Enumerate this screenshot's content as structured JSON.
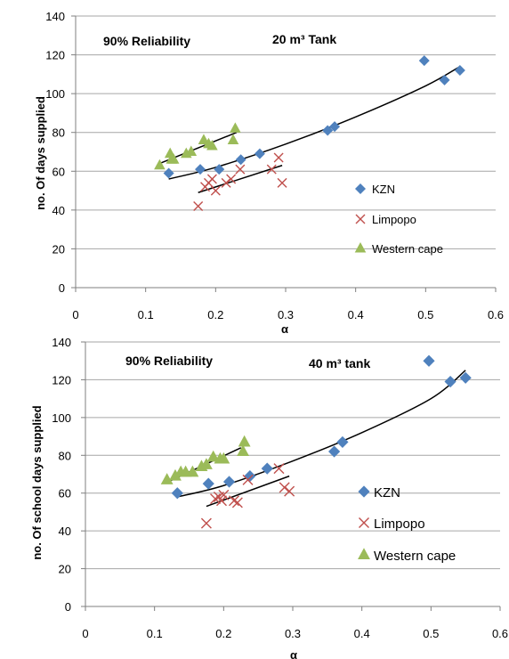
{
  "colors": {
    "kzn": "#4F81BD",
    "limpopo": "#C0504D",
    "western_cape": "#9BBB59",
    "trend": "#000000",
    "grid": "#A6A6A6"
  },
  "chart_data": [
    {
      "type": "scatter",
      "annotation_left": "90% Reliability",
      "annotation_right": "20 m³ Tank",
      "xlabel": "α",
      "ylabel": "no. Of days supplied",
      "xlim": [
        0,
        0.6
      ],
      "ylim": [
        0,
        140
      ],
      "x_ticks": [
        "0",
        "0.1",
        "0.2",
        "0.3",
        "0.4",
        "0.5",
        "0.6"
      ],
      "y_ticks": [
        "0",
        "20",
        "40",
        "60",
        "80",
        "100",
        "120",
        "140"
      ],
      "grid": "horizontal",
      "legend_position": "right",
      "series": [
        {
          "name": "KZN",
          "marker": "diamond",
          "color": "#4F81BD",
          "points": [
            [
              0.133,
              59
            ],
            [
              0.178,
              61
            ],
            [
              0.205,
              61
            ],
            [
              0.236,
              66
            ],
            [
              0.263,
              69
            ],
            [
              0.36,
              81
            ],
            [
              0.37,
              83
            ],
            [
              0.498,
              117
            ],
            [
              0.527,
              107
            ],
            [
              0.549,
              112
            ]
          ],
          "trendline": {
            "kind": "curve",
            "x_range": [
              0.133,
              0.549
            ],
            "points": [
              [
                0.133,
                56
              ],
              [
                0.2,
                62
              ],
              [
                0.3,
                74
              ],
              [
                0.4,
                88
              ],
              [
                0.5,
                104
              ],
              [
                0.549,
                114
              ]
            ]
          }
        },
        {
          "name": "Limpopo",
          "marker": "x",
          "color": "#C0504D",
          "points": [
            [
              0.175,
              42
            ],
            [
              0.185,
              52
            ],
            [
              0.19,
              54
            ],
            [
              0.195,
              56
            ],
            [
              0.2,
              50
            ],
            [
              0.215,
              54
            ],
            [
              0.222,
              56
            ],
            [
              0.235,
              61
            ],
            [
              0.28,
              61
            ],
            [
              0.29,
              67
            ],
            [
              0.295,
              54
            ]
          ],
          "trendline": {
            "kind": "line",
            "x_range": [
              0.175,
              0.295
            ],
            "y_range": [
              49,
              63
            ]
          }
        },
        {
          "name": "Western cape",
          "marker": "triangle",
          "color": "#9BBB59",
          "points": [
            [
              0.12,
              63
            ],
            [
              0.135,
              69
            ],
            [
              0.137,
              66
            ],
            [
              0.14,
              66
            ],
            [
              0.158,
              69
            ],
            [
              0.165,
              70
            ],
            [
              0.183,
              76
            ],
            [
              0.19,
              74
            ],
            [
              0.195,
              73
            ],
            [
              0.225,
              76
            ],
            [
              0.228,
              82
            ]
          ],
          "trendline": {
            "kind": "line",
            "x_range": [
              0.12,
              0.23
            ],
            "y_range": [
              64,
              80
            ]
          }
        }
      ]
    },
    {
      "type": "scatter",
      "annotation_left": "90% Reliability",
      "annotation_right": "40 m³ tank",
      "xlabel": "α",
      "ylabel": "no. Of school days supplied",
      "xlim": [
        0,
        0.6
      ],
      "ylim": [
        0,
        140
      ],
      "x_ticks": [
        "0",
        "0.1",
        "0.2",
        "0.3",
        "0.4",
        "0.5",
        "0.6"
      ],
      "y_ticks": [
        "0",
        "20",
        "40",
        "60",
        "80",
        "100",
        "120",
        "140"
      ],
      "grid": "horizontal",
      "legend_position": "right",
      "series": [
        {
          "name": "KZN",
          "marker": "diamond",
          "color": "#4F81BD",
          "points": [
            [
              0.133,
              60
            ],
            [
              0.178,
              65
            ],
            [
              0.208,
              66
            ],
            [
              0.238,
              69
            ],
            [
              0.263,
              73
            ],
            [
              0.36,
              82
            ],
            [
              0.372,
              87
            ],
            [
              0.497,
              130
            ],
            [
              0.528,
              119
            ],
            [
              0.55,
              121
            ]
          ],
          "trendline": {
            "kind": "curve",
            "x_range": [
              0.133,
              0.55
            ],
            "points": [
              [
                0.133,
                58
              ],
              [
                0.2,
                64
              ],
              [
                0.3,
                77
              ],
              [
                0.4,
                92
              ],
              [
                0.5,
                110
              ],
              [
                0.55,
                125
              ]
            ]
          }
        },
        {
          "name": "Limpopo",
          "marker": "x",
          "color": "#C0504D",
          "points": [
            [
              0.175,
              44
            ],
            [
              0.188,
              57
            ],
            [
              0.193,
              58
            ],
            [
              0.197,
              56
            ],
            [
              0.2,
              59
            ],
            [
              0.215,
              56
            ],
            [
              0.22,
              55
            ],
            [
              0.235,
              67
            ],
            [
              0.28,
              73
            ],
            [
              0.288,
              63
            ],
            [
              0.295,
              61
            ]
          ],
          "trendline": {
            "kind": "line",
            "x_range": [
              0.175,
              0.295
            ],
            "y_range": [
              53,
              69
            ]
          }
        },
        {
          "name": "Western cape",
          "marker": "triangle",
          "color": "#9BBB59",
          "points": [
            [
              0.118,
              67
            ],
            [
              0.13,
              69
            ],
            [
              0.138,
              71
            ],
            [
              0.145,
              71
            ],
            [
              0.155,
              71
            ],
            [
              0.168,
              74
            ],
            [
              0.175,
              75
            ],
            [
              0.185,
              79
            ],
            [
              0.195,
              78
            ],
            [
              0.2,
              78
            ],
            [
              0.228,
              82
            ],
            [
              0.23,
              87
            ]
          ],
          "trendline": {
            "kind": "line",
            "x_range": [
              0.12,
              0.225
            ],
            "y_range": [
              66,
              84
            ]
          }
        }
      ]
    }
  ]
}
